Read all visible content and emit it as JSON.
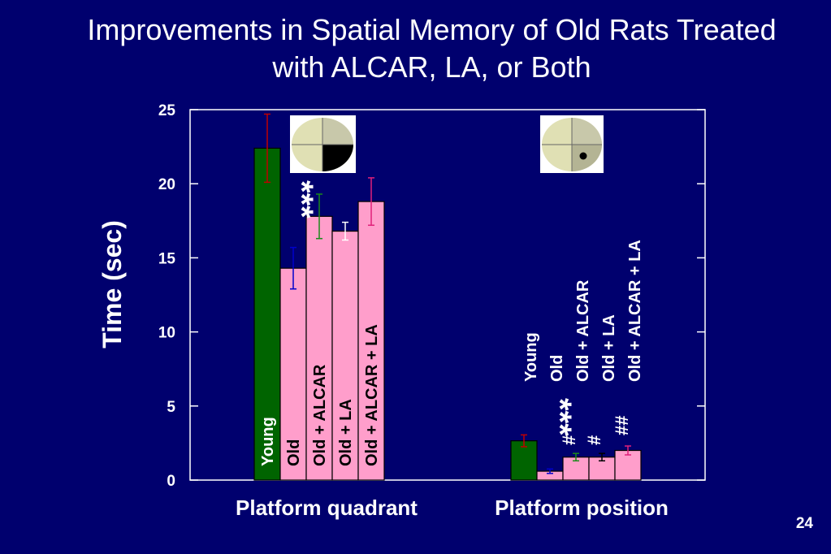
{
  "slide": {
    "title_line1": "Improvements in Spatial Memory of Old Rats Treated",
    "title_line2": "with ALCAR, LA, or Both",
    "number": "24"
  },
  "colors": {
    "background": "#00006e",
    "young_bar": "#006400",
    "treated_bar": "#ff9ecb",
    "error_red": "#c00000",
    "error_blue": "#0000cc",
    "error_green": "#1a8a1a",
    "error_white": "#ffffff",
    "error_magenta": "#e0207a",
    "error_black": "#000000"
  },
  "chart_data": {
    "type": "bar",
    "ylabel": "Time (sec)",
    "ylim": [
      0,
      25
    ],
    "yticks": [
      "0",
      "5",
      "10",
      "15",
      "20",
      "25"
    ],
    "groups": [
      "Platform quadrant",
      "Platform position"
    ],
    "categories": [
      "Young",
      "Old",
      "Old + ALCAR",
      "Old + LA",
      "Old + ALCAR + LA"
    ],
    "series": [
      {
        "group": "Platform quadrant",
        "values": [
          22.4,
          14.3,
          17.8,
          16.8,
          18.8
        ],
        "errors": [
          2.3,
          1.4,
          1.5,
          0.6,
          1.6
        ]
      },
      {
        "group": "Platform position",
        "values": [
          2.65,
          0.6,
          1.55,
          1.55,
          2.0
        ],
        "errors": [
          0.4,
          0.15,
          0.25,
          0.25,
          0.3
        ]
      }
    ],
    "annotations": {
      "quadrant_stars": "***",
      "position_stars": "***",
      "position_marks": [
        "#",
        "#",
        "##"
      ]
    }
  }
}
